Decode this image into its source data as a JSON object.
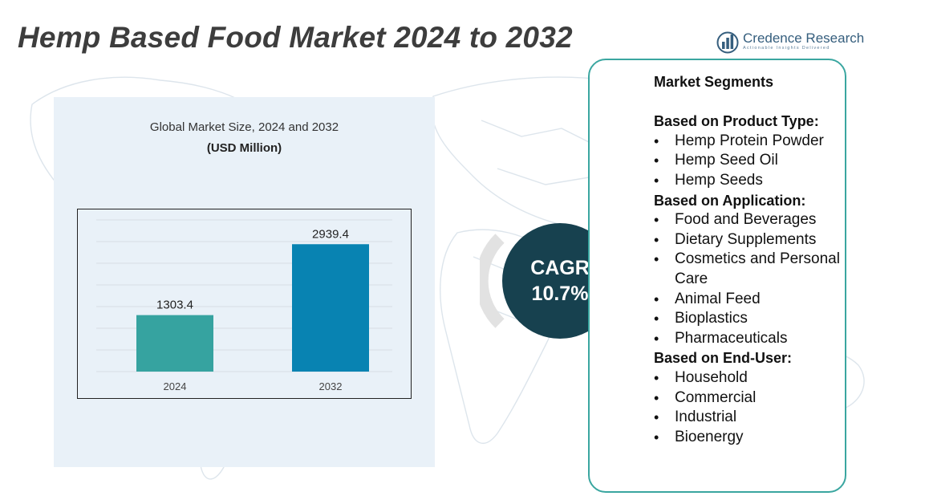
{
  "title": "Hemp Based Food Market 2024 to 2032",
  "brand": {
    "name": "Credence Research",
    "tagline": "Actionable Insights Delivered",
    "icon": "bar-chart-globe-icon"
  },
  "colors": {
    "bar_2024": "#36a3a0",
    "bar_2032": "#0883b2",
    "cagr_circle": "#17414f",
    "cagr_ring": "#e2e2e2",
    "box_border": "#3aa6a0",
    "panel_bg": "#e9f1f8"
  },
  "chart_data": {
    "type": "bar",
    "title": "Global Market Size, 2024 and 2032",
    "subtitle": "(USD Million)",
    "categories": [
      "2024",
      "2032"
    ],
    "values": [
      1303.4,
      2939.4
    ],
    "value_labels": [
      "1303.4",
      "2939.4"
    ],
    "ylim": [
      0,
      3500
    ],
    "grid": true,
    "legend": "none"
  },
  "cagr": {
    "label": "CAGR",
    "value": "10.7%"
  },
  "segments": {
    "heading": "Market Segments",
    "groups": [
      {
        "title": "Based on Product Type:",
        "items": [
          "Hemp Protein Powder",
          "Hemp Seed Oil",
          "Hemp Seeds"
        ]
      },
      {
        "title": "Based on Application:",
        "items": [
          "Food and Beverages",
          "Dietary Supplements",
          "Cosmetics and Personal Care",
          "Animal Feed",
          "Bioplastics",
          "Pharmaceuticals"
        ]
      },
      {
        "title": "Based on End-User:",
        "items": [
          "Household",
          "Commercial",
          "Industrial",
          "Bioenergy"
        ]
      }
    ],
    "bullet": "•"
  }
}
